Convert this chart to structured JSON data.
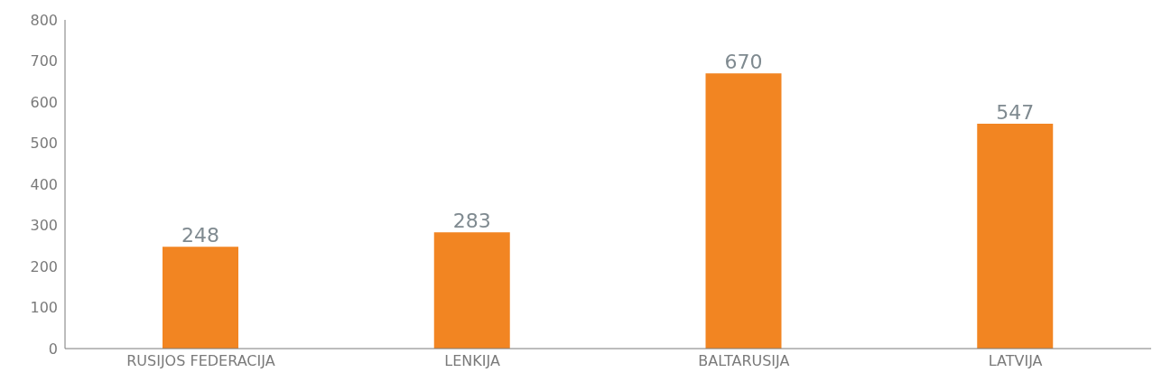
{
  "chart_data": {
    "type": "bar",
    "categories": [
      "RUSIJOS FEDERACIJA",
      "LENKIJA",
      "BALTARUSIJA",
      "LATVIJA"
    ],
    "values": [
      248,
      283,
      670,
      547
    ],
    "color": "#f28522",
    "ylim": [
      0,
      800
    ],
    "yticks": [
      0,
      100,
      200,
      300,
      400,
      500,
      600,
      700,
      800
    ],
    "grid": false,
    "data_labels": true
  }
}
